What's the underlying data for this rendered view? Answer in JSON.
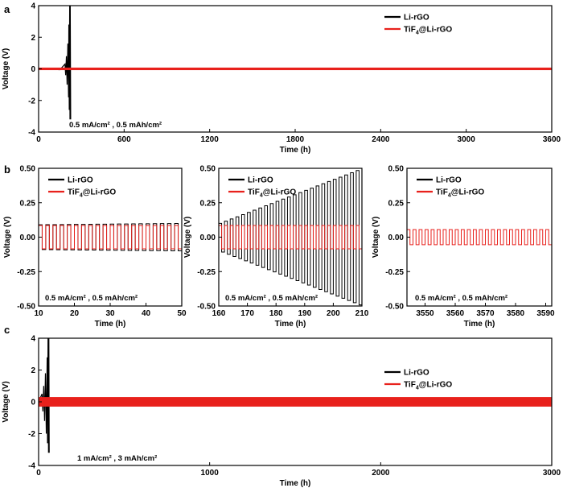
{
  "colors": {
    "li_rgo": "#000000",
    "tif4": "#e8211c"
  },
  "chart_data": [
    {
      "panel_label": "a",
      "type": "line",
      "xlabel": "Time (h)",
      "ylabel": "Voltage (V)",
      "xlim": [
        0,
        3600
      ],
      "ylim": [
        -4,
        4
      ],
      "xticks": [
        0,
        600,
        1200,
        1800,
        2400,
        3000,
        3600
      ],
      "yticks": [
        -4,
        -2,
        0,
        2,
        4
      ],
      "annotation": "0.5 mA/cm² , 0.5 mAh/cm²",
      "legend_position": "top-right",
      "series": [
        {
          "name_main": "Li-rGO",
          "name_sub": "",
          "name_tail": "",
          "color": "#000000",
          "x": [
            0,
            150,
            185,
            190,
            195,
            200,
            205,
            210,
            212,
            215,
            218,
            220,
            222,
            225
          ],
          "y": [
            0,
            -0.05,
            0.3,
            -0.4,
            0.8,
            -1.0,
            1.6,
            -1.8,
            2.8,
            -2.6,
            4,
            -3.2,
            4,
            -3.2
          ]
        },
        {
          "name_main": "TiF",
          "name_sub": "4",
          "name_tail": "@Li-rGO",
          "color": "#e8211c",
          "x": [
            0,
            3600
          ],
          "y": [
            0,
            0
          ],
          "band": 0.08
        }
      ]
    },
    {
      "panel_label": "b",
      "type": "line",
      "xlabel": "Time (h)",
      "ylabel": "Voltage (V)",
      "xlim": [
        10,
        50
      ],
      "ylim": [
        -0.5,
        0.5
      ],
      "xticks": [
        10,
        20,
        30,
        40,
        50
      ],
      "yticks": [
        -0.5,
        -0.25,
        0.0,
        0.25,
        0.5
      ],
      "ytick_labels": [
        "-0.50",
        "-0.25",
        "0.00",
        "0.25",
        "0.50"
      ],
      "annotation": "0.5 mA/cm² , 0.5 mAh/cm²",
      "legend_position": "top-left",
      "series": [
        {
          "name_main": "Li-rGO",
          "name_sub": "",
          "name_tail": "",
          "color": "#000000",
          "period_h": 2,
          "amplitude": [
            0.09,
            0.1
          ]
        },
        {
          "name_main": "TiF",
          "name_sub": "4",
          "name_tail": "@Li-rGO",
          "color": "#e8211c",
          "period_h": 2,
          "amplitude": [
            0.085,
            0.085
          ]
        }
      ]
    },
    {
      "panel_label": "",
      "type": "line",
      "xlabel": "Time (h)",
      "ylabel": "Voltage (V)",
      "xlim": [
        160,
        210
      ],
      "ylim": [
        -0.5,
        0.5
      ],
      "xticks": [
        160,
        170,
        180,
        190,
        200,
        210
      ],
      "yticks": [
        -0.5,
        -0.25,
        0.0,
        0.25,
        0.5
      ],
      "ytick_labels": [
        "-0.50",
        "-0.25",
        "0.00",
        "0.25",
        "0.50"
      ],
      "annotation": "0.5 mA/cm² , 0.5 mAh/cm²",
      "legend_position": "top-left",
      "series": [
        {
          "name_main": "Li-rGO",
          "name_sub": "",
          "name_tail": "",
          "color": "#000000",
          "period_h": 2,
          "amplitude": [
            0.1,
            0.5
          ]
        },
        {
          "name_main": "TiF",
          "name_sub": "4",
          "name_tail": "@Li-rGO",
          "color": "#e8211c",
          "period_h": 2,
          "amplitude": [
            0.085,
            0.085
          ]
        }
      ]
    },
    {
      "panel_label": "",
      "type": "line",
      "xlabel": "Time (h)",
      "ylabel": "Voltage (V)",
      "xlim": [
        3544,
        3592
      ],
      "ylim": [
        -0.5,
        0.5
      ],
      "xticks": [
        3550,
        3560,
        3570,
        3580,
        3590
      ],
      "yticks": [
        -0.5,
        -0.25,
        0.0,
        0.25,
        0.5
      ],
      "ytick_labels": [
        "-0.50",
        "-0.25",
        "0.00",
        "0.25",
        "0.50"
      ],
      "annotation": "0.5 mA/cm² , 0.5 mAh/cm²",
      "legend_position": "top-left",
      "series": [
        {
          "name_main": "Li-rGO",
          "name_sub": "",
          "name_tail": "",
          "color": "#000000"
        },
        {
          "name_main": "TiF",
          "name_sub": "4",
          "name_tail": "@Li-rGO",
          "color": "#e8211c",
          "period_h": 2,
          "amplitude": [
            0.055,
            0.055
          ]
        }
      ]
    },
    {
      "panel_label": "c",
      "type": "line",
      "xlabel": "Time (h)",
      "ylabel": "Voltage (V)",
      "xlim": [
        0,
        3000
      ],
      "ylim": [
        -4,
        4
      ],
      "xticks": [
        0,
        1000,
        2000,
        3000
      ],
      "yticks": [
        -4,
        -2,
        0,
        2,
        4
      ],
      "annotation": "1 mA/cm² , 3 mAh/cm²",
      "legend_position": "top-right",
      "series": [
        {
          "name_main": "Li-rGO",
          "name_sub": "",
          "name_tail": "",
          "color": "#000000",
          "x": [
            0,
            20,
            25,
            30,
            35,
            40,
            45,
            50,
            52,
            55,
            58,
            60,
            62
          ],
          "y": [
            0,
            0.5,
            -0.6,
            1.0,
            -1.2,
            1.8,
            -2.0,
            2.8,
            -2.6,
            4,
            -3.2,
            4,
            -3.2
          ]
        },
        {
          "name_main": "TiF",
          "name_sub": "4",
          "name_tail": "@Li-rGO",
          "color": "#e8211c",
          "x": [
            0,
            3000
          ],
          "y": [
            0,
            0
          ],
          "band": 0.3
        }
      ]
    }
  ]
}
